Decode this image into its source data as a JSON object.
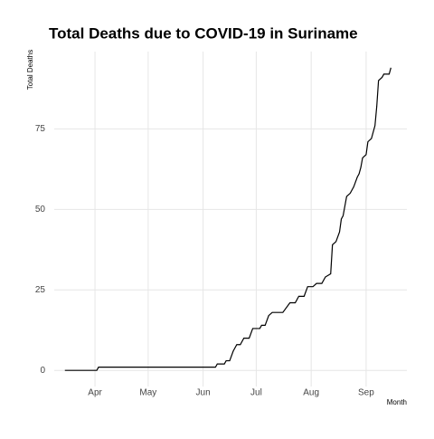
{
  "chart_data": {
    "type": "line",
    "title": "Total Deaths due to COVID-19 in Suriname",
    "x_label": "Month",
    "y_label": "Total Deaths",
    "series": [
      {
        "name": "Total Deaths",
        "color": "#000000",
        "x": [
          75,
          93,
          94,
          160,
          161,
          165,
          166,
          168,
          170,
          172,
          174,
          176,
          179,
          181,
          185,
          186,
          188,
          190,
          192,
          198,
          202,
          205,
          207,
          210,
          212,
          215,
          217,
          220,
          222,
          225,
          226,
          228,
          230,
          231,
          232,
          234,
          236,
          238,
          240,
          241,
          242,
          243,
          245,
          246,
          248,
          250,
          251,
          252,
          254,
          255,
          258,
          259
        ],
        "values": [
          0,
          0,
          1,
          1,
          2,
          2,
          3,
          3,
          6,
          8,
          8,
          10,
          10,
          13,
          13,
          14,
          14,
          17,
          18,
          18,
          21,
          21,
          23,
          23,
          26,
          26,
          27,
          27,
          29,
          30,
          39,
          40,
          43,
          47,
          48,
          54,
          55,
          57,
          60,
          61,
          63,
          66,
          67,
          71,
          72,
          76,
          82,
          90,
          91,
          92,
          92,
          94
        ]
      }
    ],
    "xlim": [
      69,
      268
    ],
    "xticks": [
      {
        "value": 92,
        "label": "Apr"
      },
      {
        "value": 122,
        "label": "May"
      },
      {
        "value": 153,
        "label": "Jun"
      },
      {
        "value": 183,
        "label": "Jul"
      },
      {
        "value": 214,
        "label": "Aug"
      },
      {
        "value": 245,
        "label": "Sep"
      }
    ],
    "ylim": [
      -5,
      99
    ],
    "yticks": [
      0,
      25,
      50,
      75
    ],
    "grid": true
  }
}
